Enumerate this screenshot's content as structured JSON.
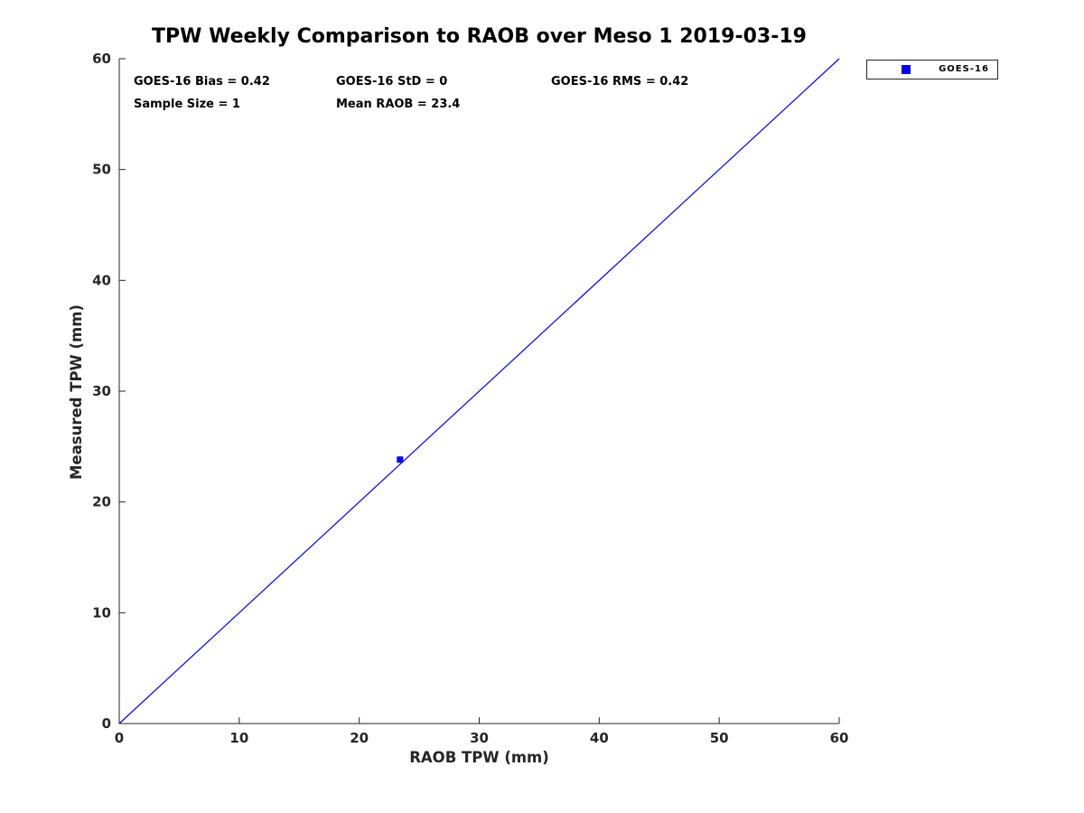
{
  "chart_data": {
    "type": "scatter",
    "title": "TPW Weekly Comparison to RAOB over Meso 1 2019-03-19",
    "xlabel": "RAOB TPW (mm)",
    "ylabel": "Measured TPW (mm)",
    "xlim": [
      0,
      60
    ],
    "ylim": [
      0,
      60
    ],
    "xticks": [
      0,
      10,
      20,
      30,
      40,
      50,
      60
    ],
    "yticks": [
      0,
      10,
      20,
      30,
      40,
      50,
      60
    ],
    "grid": false,
    "box": false,
    "axis_color": "#262626",
    "accent_color": "#0000ee",
    "series": [
      {
        "name": "identity-line",
        "type": "line",
        "color": "#0000ee",
        "points": [
          [
            0,
            0
          ],
          [
            60,
            60
          ]
        ]
      },
      {
        "name": "GOES-16",
        "type": "scatter",
        "marker": "square",
        "marker_size": 7,
        "color": "#0000ee",
        "points": [
          [
            23.4,
            23.82
          ]
        ]
      }
    ],
    "legend": {
      "position": "outside-top-right",
      "entries": [
        {
          "label": "GOES-16",
          "marker": "square",
          "color": "#0000ee"
        }
      ]
    },
    "annotations": {
      "bias": "GOES-16 Bias = 0.42",
      "std": "GOES-16 StD = 0",
      "rms": "GOES-16 RMS = 0.42",
      "sample_size": "Sample Size = 1",
      "mean_raob": "Mean RAOB = 23.4"
    }
  }
}
